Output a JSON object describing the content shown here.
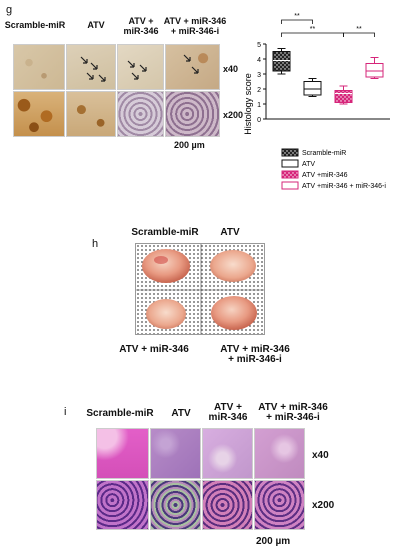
{
  "panel_g": {
    "letter": "g",
    "columns": [
      "Scramble-miR",
      "ATV",
      "ATV +\nmiR-346",
      "ATV + miR-346\n+ miR-346-i"
    ],
    "row_labels": [
      "x40",
      "x200"
    ],
    "scale_label": "200 µm"
  },
  "panel_h": {
    "letter": "h",
    "top_labels": [
      "Scramble-miR",
      "ATV"
    ],
    "bottom_labels": [
      "ATV + miR-346",
      "ATV + miR-346\n+ miR-346-i"
    ]
  },
  "panel_i": {
    "letter": "i",
    "columns": [
      "Scramble-miR",
      "ATV",
      "ATV +\nmiR-346",
      "ATV + miR-346\n+ miR-346-i"
    ],
    "row_labels": [
      "x40",
      "x200"
    ],
    "scale_label": "200 µm"
  },
  "chart_data": {
    "type": "box",
    "ylabel": "Histology score",
    "ylim": [
      0,
      5
    ],
    "yticks": [
      "0",
      "1",
      "2",
      "3",
      "4",
      "5"
    ],
    "significance": [
      "**",
      "**",
      "**"
    ],
    "series": [
      {
        "name": "Scramble-miR",
        "min": 3.0,
        "q1": 3.2,
        "median": 3.9,
        "q3": 4.5,
        "max": 4.7,
        "color": "#111111",
        "fill": "pattern-dark"
      },
      {
        "name": "ATV",
        "min": 1.5,
        "q1": 1.6,
        "median": 2.0,
        "q3": 2.5,
        "max": 2.7,
        "color": "#111111",
        "fill": "white"
      },
      {
        "name": "ATV +miR-346",
        "min": 1.0,
        "q1": 1.1,
        "median": 1.7,
        "q3": 1.9,
        "max": 2.2,
        "color": "#d6257a",
        "fill": "pattern-pink"
      },
      {
        "name": "ATV +miR-346 + miR-346-i",
        "min": 2.7,
        "q1": 2.8,
        "median": 3.2,
        "q3": 3.7,
        "max": 4.1,
        "color": "#d6257a",
        "fill": "white"
      }
    ]
  }
}
